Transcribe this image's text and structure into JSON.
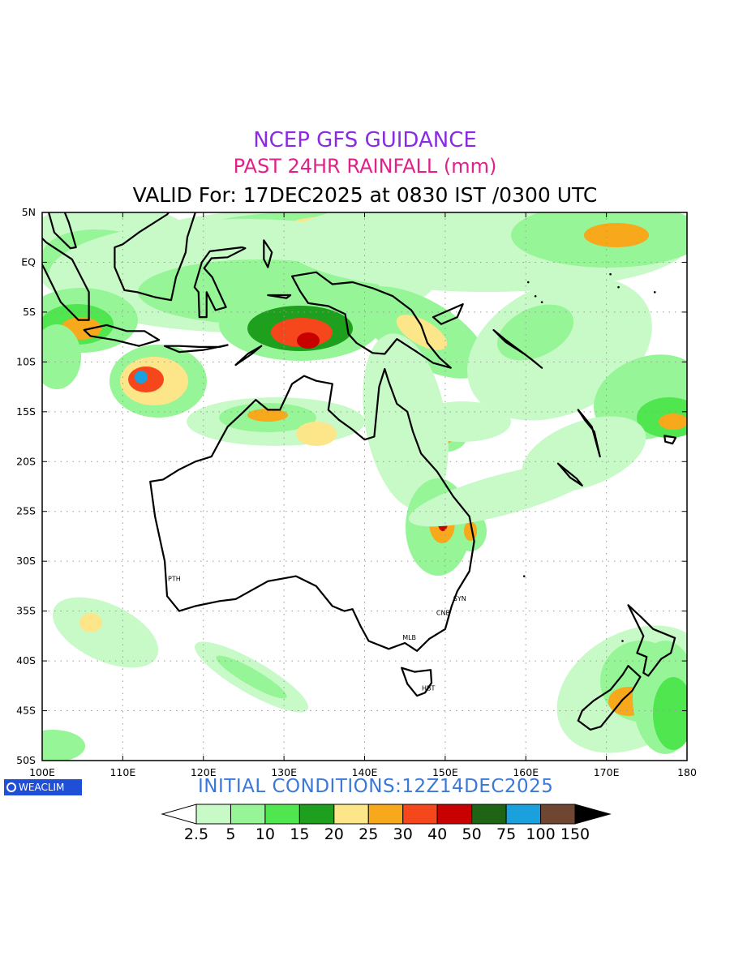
{
  "titles": {
    "line1": "NCEP GFS GUIDANCE",
    "line2": "PAST 24HR RAINFALL (mm)",
    "line3": "VALID For: 17DEC2025 at 0830 IST /0300 UTC"
  },
  "map": {
    "lon_range": [
      100,
      180
    ],
    "lat_range": [
      -50,
      5
    ],
    "lat_labels": [
      "5N",
      "EQ",
      "5S",
      "10S",
      "15S",
      "20S",
      "25S",
      "30S",
      "35S",
      "40S",
      "45S",
      "50S"
    ],
    "lon_labels": [
      "100E",
      "110E",
      "120E",
      "130E",
      "140E",
      "150E",
      "160E",
      "170E",
      "180"
    ],
    "cities": [
      {
        "code": "PTH",
        "lon": 115.8,
        "lat": -31.9
      },
      {
        "code": "SYN",
        "lon": 151.2,
        "lat": -33.9
      },
      {
        "code": "CNB",
        "lon": 149.1,
        "lat": -35.3
      },
      {
        "code": "MLB",
        "lon": 144.9,
        "lat": -37.8
      },
      {
        "code": "HBT",
        "lon": 147.3,
        "lat": -42.9
      }
    ]
  },
  "initial_conditions": "INITIAL  CONDITIONS:12Z14DEC2025",
  "logo_text": "WEACLIM",
  "legend": {
    "labels": [
      "2.5",
      "5",
      "10",
      "15",
      "20",
      "25",
      "30",
      "40",
      "50",
      "75",
      "100",
      "150"
    ],
    "colors": [
      "#ffffff",
      "#c8fac8",
      "#96f596",
      "#50e650",
      "#1ea01e",
      "#fde68a",
      "#f7a81b",
      "#f5471b",
      "#c80000",
      "#1e6414",
      "#1aa0dc",
      "#6e4632",
      "#000000"
    ]
  }
}
